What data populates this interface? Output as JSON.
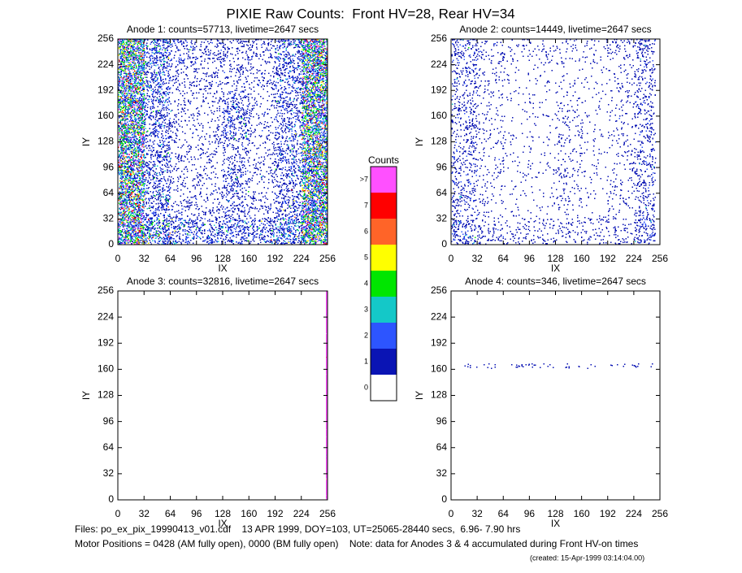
{
  "title": "PIXIE Raw Counts:  Front HV=28, Rear HV=34",
  "chart_data": [
    {
      "type": "heatmap",
      "title": "Anode 1: counts=57713, livetime=2647 secs",
      "xlabel": "IX",
      "ylabel": "IY",
      "xlim": [
        0,
        256
      ],
      "ylim": [
        0,
        256
      ],
      "xticks": [
        0,
        32,
        64,
        96,
        128,
        160,
        192,
        224,
        256
      ],
      "yticks": [
        0,
        32,
        64,
        96,
        128,
        160,
        192,
        224,
        256
      ],
      "xbins": [
        0,
        32,
        64,
        96,
        128,
        160,
        192,
        224,
        256
      ],
      "ybins": [
        0,
        32,
        64,
        96,
        128,
        160,
        192,
        224,
        256
      ],
      "z": [
        [
          2.8,
          1.5,
          1.0,
          0.9,
          1.0,
          0.9,
          1.4,
          2.8
        ],
        [
          2.6,
          1.0,
          0.4,
          0.4,
          0.6,
          0.4,
          0.9,
          2.6
        ],
        [
          2.6,
          0.9,
          0.3,
          0.3,
          0.8,
          0.3,
          0.8,
          2.6
        ],
        [
          2.6,
          0.9,
          0.3,
          0.3,
          0.5,
          0.3,
          0.8,
          2.6
        ],
        [
          2.6,
          0.9,
          0.3,
          0.3,
          0.9,
          0.3,
          0.8,
          2.6
        ],
        [
          2.6,
          0.9,
          0.3,
          0.3,
          0.8,
          0.3,
          0.8,
          2.6
        ],
        [
          2.6,
          1.0,
          0.4,
          0.4,
          0.4,
          0.4,
          0.9,
          2.6
        ],
        [
          2.8,
          1.2,
          0.6,
          0.5,
          0.5,
          0.5,
          1.0,
          2.8
        ]
      ]
    },
    {
      "type": "heatmap",
      "title": "Anode 2: counts=14449, livetime=2647 secs",
      "xlabel": "IX",
      "ylabel": "IY",
      "xlim": [
        0,
        256
      ],
      "ylim": [
        0,
        256
      ],
      "xticks": [
        0,
        32,
        64,
        96,
        128,
        160,
        192,
        224,
        256
      ],
      "yticks": [
        0,
        32,
        64,
        96,
        128,
        160,
        192,
        224,
        256
      ],
      "xbins": [
        0,
        32,
        64,
        96,
        128,
        160,
        192,
        224,
        250
      ],
      "ybins": [
        0,
        32,
        64,
        96,
        128,
        160,
        192,
        224,
        256
      ],
      "z": [
        [
          0.8,
          0.4,
          0.3,
          0.3,
          0.3,
          0.3,
          0.3,
          0.8
        ],
        [
          0.5,
          0.2,
          0.1,
          0.1,
          0.2,
          0.1,
          0.2,
          0.5
        ],
        [
          0.5,
          0.2,
          0.1,
          0.1,
          0.3,
          0.1,
          0.2,
          0.5
        ],
        [
          0.5,
          0.2,
          0.1,
          0.1,
          0.2,
          0.1,
          0.2,
          0.5
        ],
        [
          0.5,
          0.2,
          0.1,
          0.1,
          0.3,
          0.1,
          0.2,
          0.5
        ],
        [
          0.5,
          0.2,
          0.1,
          0.1,
          0.2,
          0.1,
          0.2,
          0.5
        ],
        [
          0.5,
          0.2,
          0.1,
          0.1,
          0.1,
          0.1,
          0.2,
          0.5
        ],
        [
          0.6,
          0.3,
          0.2,
          0.2,
          0.2,
          0.2,
          0.3,
          0.6
        ]
      ]
    },
    {
      "type": "heatmap",
      "title": "Anode 3: counts=32816, livetime=2647 secs",
      "xlabel": "IX",
      "ylabel": "IY",
      "xlim": [
        0,
        256
      ],
      "ylim": [
        0,
        256
      ],
      "xticks": [
        0,
        32,
        64,
        96,
        128,
        160,
        192,
        224,
        256
      ],
      "yticks": [
        0,
        32,
        64,
        96,
        128,
        160,
        192,
        224,
        256
      ],
      "xbins": [
        0,
        254,
        256
      ],
      "ybins": [
        0,
        256
      ],
      "z": [
        [
          0,
          64
        ]
      ]
    },
    {
      "type": "heatmap",
      "title": "Anode 4: counts=346, livetime=2647 secs",
      "xlabel": "IX",
      "ylabel": "IY",
      "xlim": [
        0,
        256
      ],
      "ylim": [
        0,
        256
      ],
      "xticks": [
        0,
        32,
        64,
        96,
        128,
        160,
        192,
        224,
        256
      ],
      "yticks": [
        0,
        32,
        64,
        96,
        128,
        160,
        192,
        224,
        256
      ],
      "xbins": [
        0,
        250,
        256
      ],
      "ybins": [
        0,
        160,
        166,
        256
      ],
      "z": [
        [
          0,
          0
        ],
        [
          0.23,
          0
        ],
        [
          0,
          0
        ]
      ]
    }
  ],
  "colorbar": {
    "title": "Counts",
    "labels": [
      "0",
      "1",
      "2",
      "3",
      "4",
      "5",
      "6",
      "7",
      ">7"
    ],
    "colors": [
      "#ffffff",
      "#0a14b4",
      "#2d55ff",
      "#14c8c8",
      "#00e600",
      "#ffff00",
      "#ff6428",
      "#ff0000",
      "#ff50ff"
    ]
  },
  "footer": {
    "files": "Files: po_ex_pix_19990413_v01.cdf    13 APR 1999, DOY=103, UT=25065-28440 secs,  6.96- 7.90 hrs",
    "motor": "Motor Positions = 0428 (AM fully open), 0000 (BM fully open)    Note: data for Anodes 3 & 4 accumulated during Front HV-on times",
    "created": "(created: 15-Apr-1999 03:14:04.00)"
  }
}
